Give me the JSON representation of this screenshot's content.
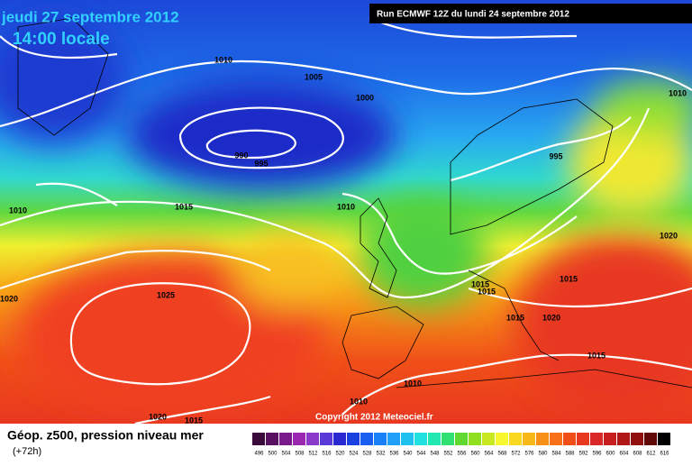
{
  "header": {
    "date": "jeudi 27 septembre 2012",
    "time": "14:00 locale",
    "run": "Run ECMWF 12Z du lundi 24 septembre 2012"
  },
  "isobar_labels": [
    "1010",
    "1005",
    "1000",
    "990",
    "995",
    "995",
    "1010",
    "1010",
    "1015",
    "1010",
    "1020",
    "1020",
    "1025",
    "1015",
    "1015",
    "1015",
    "1015",
    "1020",
    "1015",
    "1010",
    "1010",
    "1020",
    "1015"
  ],
  "copyright": "Copyright 2012 Meteociel.fr",
  "legend": {
    "title": "Géop. z500, pression niveau mer",
    "subtitle": "(+72h)",
    "labels": [
      "496",
      "500",
      "504",
      "508",
      "512",
      "516",
      "520",
      "524",
      "528",
      "532",
      "536",
      "540",
      "544",
      "548",
      "552",
      "556",
      "560",
      "564",
      "568",
      "572",
      "576",
      "580",
      "584",
      "588",
      "592",
      "596",
      "600",
      "604",
      "608",
      "612",
      "616"
    ],
    "colors": [
      "#3a0a3a",
      "#5a1060",
      "#7a1a8a",
      "#9a28b0",
      "#8a3ac8",
      "#5a3ad8",
      "#2a28d0",
      "#1a40e0",
      "#1a60f0",
      "#1a80f8",
      "#20a0f8",
      "#20c0f0",
      "#20e0e0",
      "#20e8b0",
      "#30e070",
      "#60d830",
      "#90e020",
      "#c8e820",
      "#f8f830",
      "#f8d820",
      "#f8b818",
      "#f89018",
      "#f87018",
      "#f05018",
      "#e83820",
      "#d82828",
      "#c81e1e",
      "#b01818",
      "#901010",
      "#600808",
      "#000000"
    ]
  }
}
